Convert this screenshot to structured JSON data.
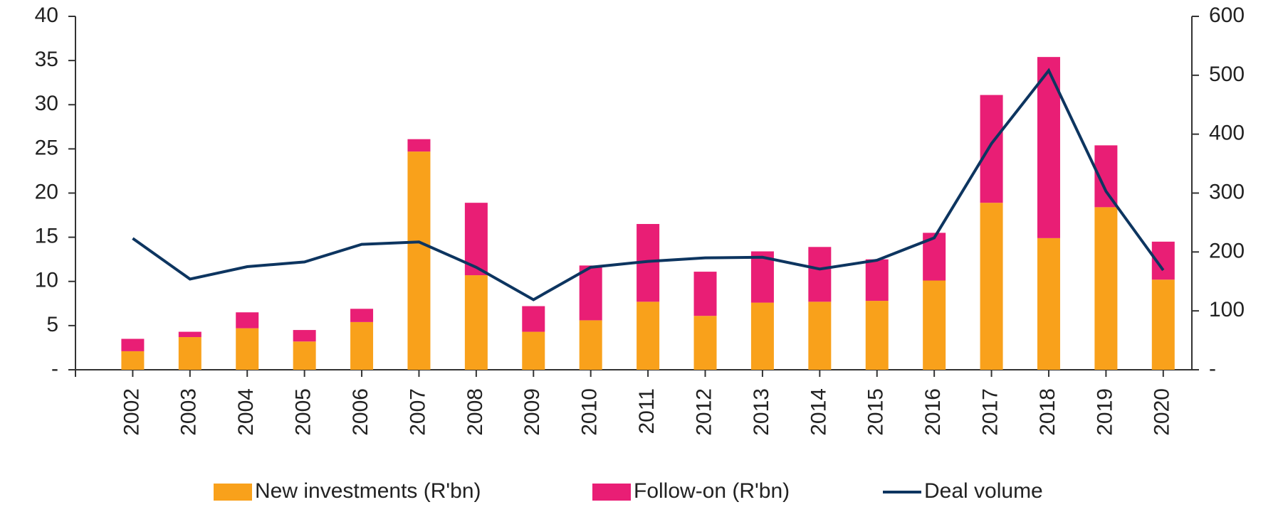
{
  "chart_data": {
    "type": "bar-line",
    "categories": [
      "2002",
      "2003",
      "2004",
      "2005",
      "2006",
      "2007",
      "2008",
      "2009",
      "2010",
      "2011",
      "2012",
      "2013",
      "2014",
      "2015",
      "2016",
      "2017",
      "2018",
      "2019",
      "2020"
    ],
    "series": [
      {
        "name": "New investments (R'bn)",
        "color": "#F9A11B",
        "type": "bar",
        "values": [
          2.1,
          3.7,
          4.7,
          3.2,
          5.4,
          24.7,
          10.7,
          4.3,
          5.6,
          7.7,
          6.1,
          7.6,
          7.7,
          7.8,
          10.1,
          18.9,
          14.9,
          18.4,
          10.2
        ]
      },
      {
        "name": "Follow-on (R'bn)",
        "color": "#E91E75",
        "type": "bar",
        "values": [
          1.4,
          0.6,
          1.8,
          1.3,
          1.5,
          1.4,
          8.2,
          2.9,
          6.2,
          8.8,
          5.0,
          5.8,
          6.2,
          4.7,
          5.4,
          12.2,
          20.5,
          7.0,
          4.3
        ]
      },
      {
        "name": "Deal volume",
        "color": "#0D3560",
        "type": "line",
        "axis": "y2",
        "values": [
          223,
          154,
          175,
          183,
          213,
          217,
          174,
          119,
          174,
          184,
          190,
          191,
          171,
          186,
          224,
          384,
          508,
          303,
          169
        ]
      }
    ],
    "ylim": [
      0,
      40
    ],
    "yticks": [
      {
        "value": 0,
        "label": "-"
      },
      5,
      10,
      15,
      20,
      25,
      30,
      35,
      40
    ],
    "y2lim": [
      0,
      600
    ],
    "y2ticks": [
      {
        "value": 0,
        "label": "-"
      },
      100,
      200,
      300,
      400,
      500,
      600
    ],
    "stacked": true,
    "legend": "bottom"
  }
}
